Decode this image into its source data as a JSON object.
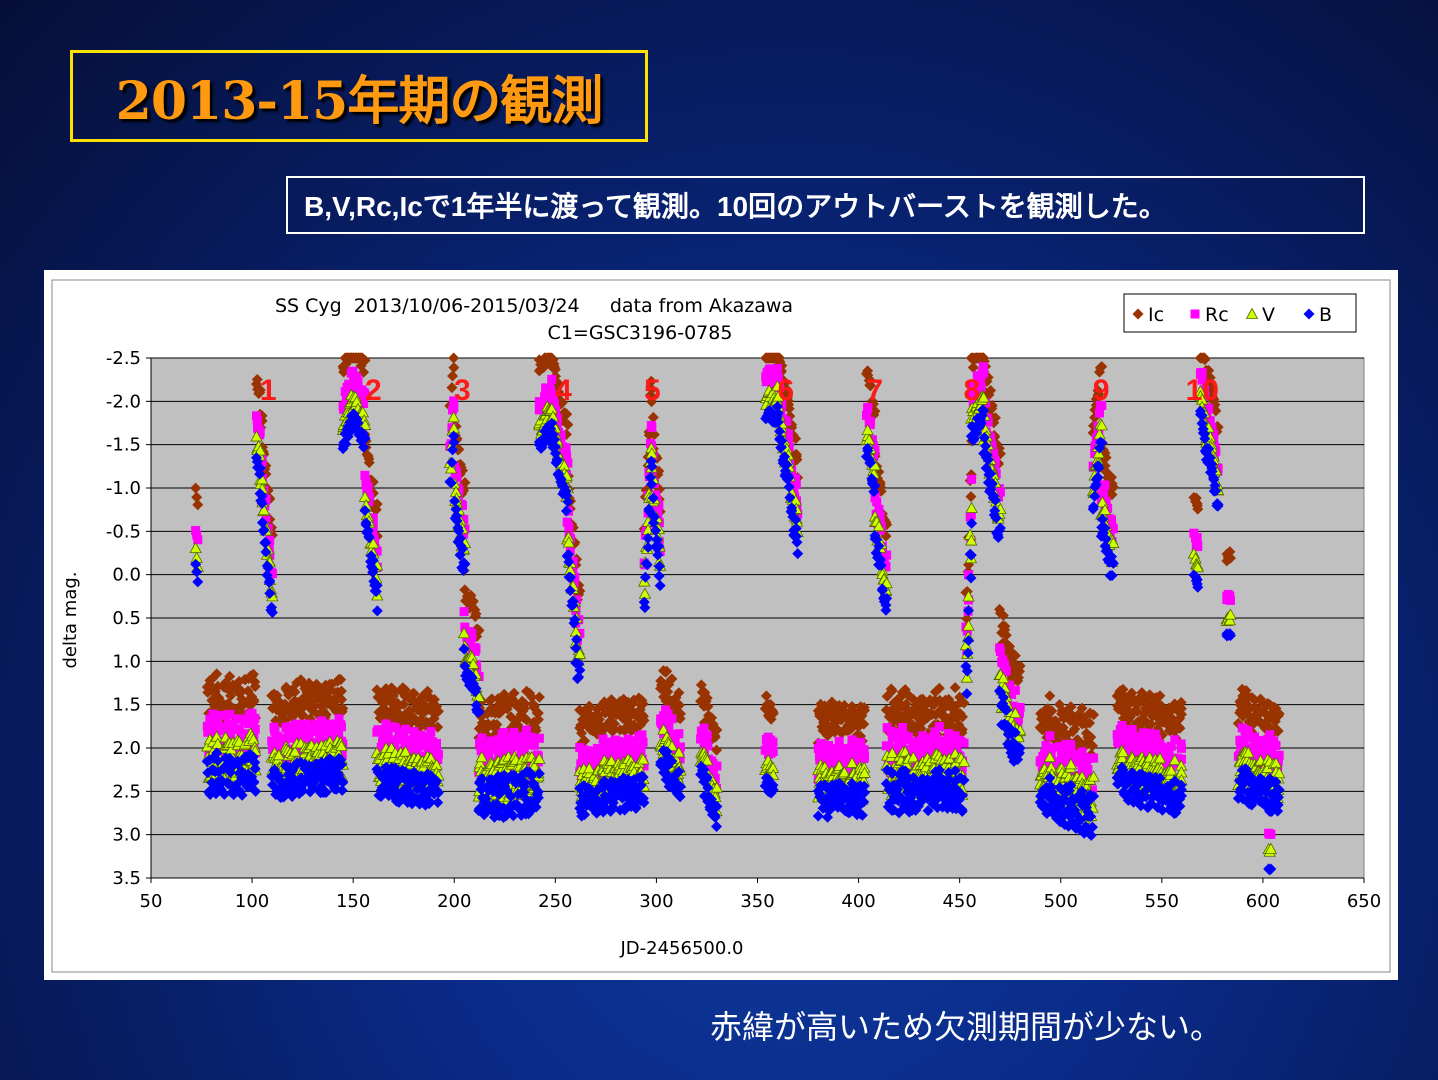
{
  "slide": {
    "title": "2013-15年期の観測",
    "subtitle": "B,V,Rc,Icで1年半に渡って観測。10回のアウトバーストを観測した。",
    "footer": "赤緯が高いため欠測期間が少ない。"
  },
  "chart_data": {
    "type": "scatter",
    "title_line1": "SS Cyg  2013/10/06-2015/03/24     data from Akazawa",
    "title_line2": "C1=GSC3196-0785",
    "xlabel": "JD-2456500.0",
    "ylabel": "delta mag.",
    "xlim": [
      50,
      650
    ],
    "ylim": [
      -2.5,
      3.5
    ],
    "y_inverted": true,
    "grid": "horizontal",
    "legend_position": "top-right",
    "x_ticks": [
      "50",
      "100",
      "150",
      "200",
      "250",
      "300",
      "350",
      "400",
      "450",
      "500",
      "550",
      "600",
      "650"
    ],
    "y_ticks": [
      "-2.5",
      "-2.0",
      "-1.5",
      "-1.0",
      "-0.5",
      "0.0",
      "0.5",
      "1.0",
      "1.5",
      "2.0",
      "2.5",
      "3.0",
      "3.5"
    ],
    "outburst_labels": [
      {
        "text": "1",
        "x": 108
      },
      {
        "text": "2",
        "x": 160
      },
      {
        "text": "3",
        "x": 204
      },
      {
        "text": "4",
        "x": 254
      },
      {
        "text": "5",
        "x": 298
      },
      {
        "text": "6",
        "x": 364
      },
      {
        "text": "7",
        "x": 408
      },
      {
        "text": "8",
        "x": 456
      },
      {
        "text": "9",
        "x": 520
      },
      {
        "text": "10",
        "x": 570
      }
    ],
    "series": [
      {
        "name": "Ic",
        "color": "#993300",
        "marker": "diamond"
      },
      {
        "name": "Rc",
        "color": "#ff00ff",
        "marker": "square"
      },
      {
        "name": "V",
        "color": "#ccff00",
        "marker": "triangle"
      },
      {
        "name": "B",
        "color": "#0000ff",
        "marker": "diamond"
      }
    ],
    "offsets_from_B": {
      "Ic": -0.9,
      "Rc": -0.45,
      "V": -0.2
    },
    "B_segments": [
      {
        "x0": 72,
        "x1": 73,
        "y0": -0.1,
        "y1": 0.1,
        "scatter": 0.05
      },
      {
        "x0": 78,
        "x1": 102,
        "y0": 2.3,
        "y1": 2.3,
        "scatter": 0.25
      },
      {
        "x0": 102,
        "x1": 104,
        "y0": -1.3,
        "y1": -1.2,
        "scatter": 0.08
      },
      {
        "x0": 104,
        "x1": 110,
        "y0": -1.0,
        "y1": 0.5,
        "scatter": 0.1
      },
      {
        "x0": 110,
        "x1": 145,
        "y0": 2.4,
        "y1": 2.3,
        "scatter": 0.2
      },
      {
        "x0": 145,
        "x1": 150,
        "y0": -1.5,
        "y1": -1.8,
        "scatter": 0.08
      },
      {
        "x0": 150,
        "x1": 156,
        "y0": -1.8,
        "y1": -1.5,
        "scatter": 0.08
      },
      {
        "x0": 156,
        "x1": 162,
        "y0": -0.6,
        "y1": 0.3,
        "scatter": 0.15
      },
      {
        "x0": 162,
        "x1": 192,
        "y0": 2.4,
        "y1": 2.5,
        "scatter": 0.2
      },
      {
        "x0": 198,
        "x1": 200,
        "y0": -1.0,
        "y1": -1.6,
        "scatter": 0.1
      },
      {
        "x0": 200,
        "x1": 205,
        "y0": -0.8,
        "y1": 0.0,
        "scatter": 0.15
      },
      {
        "x0": 205,
        "x1": 212,
        "y0": 1.0,
        "y1": 1.5,
        "scatter": 0.15
      },
      {
        "x0": 212,
        "x1": 242,
        "y0": 2.6,
        "y1": 2.5,
        "scatter": 0.25
      },
      {
        "x0": 242,
        "x1": 248,
        "y0": -1.5,
        "y1": -1.7,
        "scatter": 0.08
      },
      {
        "x0": 248,
        "x1": 256,
        "y0": -1.6,
        "y1": -0.8,
        "scatter": 0.1
      },
      {
        "x0": 256,
        "x1": 262,
        "y0": -0.4,
        "y1": 1.3,
        "scatter": 0.2
      },
      {
        "x0": 262,
        "x1": 294,
        "y0": 2.6,
        "y1": 2.5,
        "scatter": 0.2
      },
      {
        "x0": 294,
        "x1": 298,
        "y0": 0.5,
        "y1": -1.4,
        "scatter": 0.25
      },
      {
        "x0": 298,
        "x1": 302,
        "y0": -0.8,
        "y1": 0.0,
        "scatter": 0.15
      },
      {
        "x0": 302,
        "x1": 312,
        "y0": 2.1,
        "y1": 2.5,
        "scatter": 0.2
      },
      {
        "x0": 322,
        "x1": 330,
        "y0": 2.3,
        "y1": 2.8,
        "scatter": 0.15
      },
      {
        "x0": 354,
        "x1": 358,
        "y0": 2.4,
        "y1": 2.5,
        "scatter": 0.08
      },
      {
        "x0": 354,
        "x1": 360,
        "y0": -1.85,
        "y1": -1.8,
        "scatter": 0.06
      },
      {
        "x0": 360,
        "x1": 370,
        "y0": -1.8,
        "y1": -0.3,
        "scatter": 0.15
      },
      {
        "x0": 380,
        "x1": 403,
        "y0": 2.6,
        "y1": 2.6,
        "scatter": 0.2
      },
      {
        "x0": 404,
        "x1": 408,
        "y0": -1.5,
        "y1": -1.0,
        "scatter": 0.15
      },
      {
        "x0": 408,
        "x1": 414,
        "y0": -0.5,
        "y1": 0.4,
        "scatter": 0.15
      },
      {
        "x0": 414,
        "x1": 452,
        "y0": 2.5,
        "y1": 2.5,
        "scatter": 0.25
      },
      {
        "x0": 453,
        "x1": 456,
        "y0": 1.2,
        "y1": -0.4,
        "scatter": 0.4
      },
      {
        "x0": 456,
        "x1": 462,
        "y0": -1.6,
        "y1": -1.9,
        "scatter": 0.1
      },
      {
        "x0": 462,
        "x1": 470,
        "y0": -1.5,
        "y1": -0.4,
        "scatter": 0.15
      },
      {
        "x0": 470,
        "x1": 480,
        "y0": 1.5,
        "y1": 2.2,
        "scatter": 0.2
      },
      {
        "x0": 490,
        "x1": 516,
        "y0": 2.5,
        "y1": 2.8,
        "scatter": 0.25
      },
      {
        "x0": 516,
        "x1": 520,
        "y0": -0.8,
        "y1": -1.5,
        "scatter": 0.1
      },
      {
        "x0": 520,
        "x1": 526,
        "y0": -0.6,
        "y1": 0.0,
        "scatter": 0.15
      },
      {
        "x0": 528,
        "x1": 560,
        "y0": 2.4,
        "y1": 2.6,
        "scatter": 0.2
      },
      {
        "x0": 566,
        "x1": 568,
        "y0": 0.0,
        "y1": 0.2,
        "scatter": 0.08
      },
      {
        "x0": 569,
        "x1": 578,
        "y0": -1.8,
        "y1": -0.8,
        "scatter": 0.12
      },
      {
        "x0": 582,
        "x1": 584,
        "y0": 0.7,
        "y1": 0.7,
        "scatter": 0.02
      },
      {
        "x0": 588,
        "x1": 608,
        "y0": 2.4,
        "y1": 2.6,
        "scatter": 0.2
      },
      {
        "x0": 603,
        "x1": 604,
        "y0": 3.4,
        "y1": 3.4,
        "scatter": 0.01
      }
    ]
  }
}
